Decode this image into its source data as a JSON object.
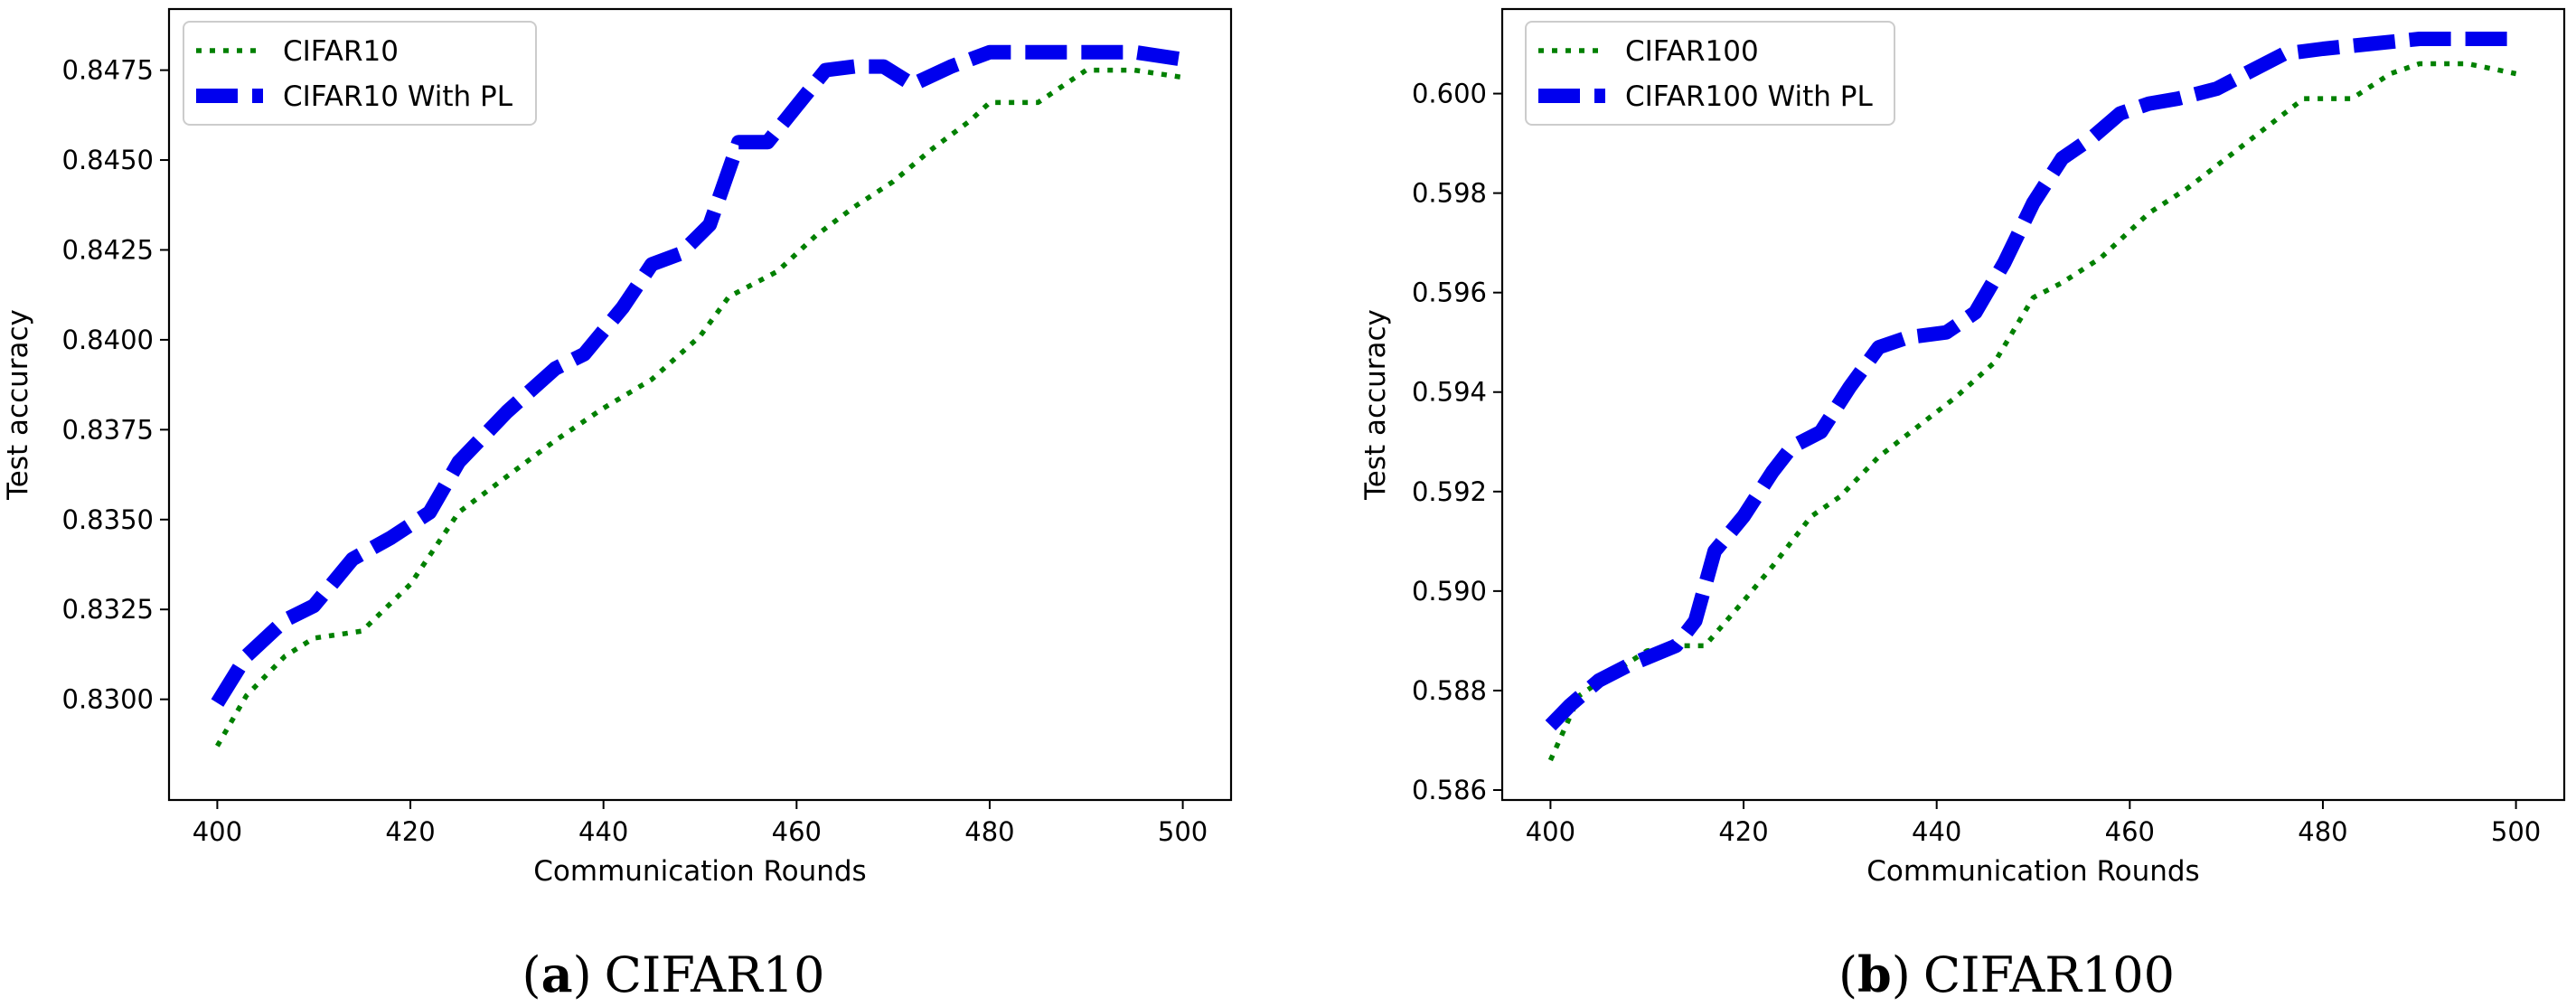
{
  "colors": {
    "baseline": "#008000",
    "with_pl": "#0000ee",
    "axis": "#000000"
  },
  "chart_data": [
    {
      "type": "line",
      "caption": {
        "letter": "a",
        "open": "(",
        "close": ")",
        "text": "CIFAR10"
      },
      "xlabel": "Communication Rounds",
      "ylabel": "Test accuracy",
      "xlim": [
        395,
        505
      ],
      "ylim": [
        0.8272,
        0.8492
      ],
      "xticks": [
        400,
        420,
        440,
        460,
        480,
        500
      ],
      "xtick_labels": [
        "400",
        "420",
        "440",
        "460",
        "480",
        "500"
      ],
      "yticks": [
        0.83,
        0.8325,
        0.835,
        0.8375,
        0.84,
        0.8425,
        0.845,
        0.8475
      ],
      "ytick_labels": [
        "0.8300",
        "0.8325",
        "0.8350",
        "0.8375",
        "0.8400",
        "0.8425",
        "0.8450",
        "0.8475"
      ],
      "legend": "top-left",
      "series": [
        {
          "name": "CIFAR10",
          "style": "dotted",
          "color": "#008000",
          "x": [
            400,
            403,
            407,
            410,
            415,
            420,
            425,
            430,
            435,
            440,
            445,
            450,
            453,
            458,
            462,
            466,
            470,
            474,
            478,
            480,
            485,
            490,
            495,
            500
          ],
          "y": [
            0.8287,
            0.8301,
            0.8312,
            0.8317,
            0.8319,
            0.8332,
            0.8352,
            0.8362,
            0.8372,
            0.8381,
            0.8389,
            0.8401,
            0.8412,
            0.8419,
            0.8429,
            0.8437,
            0.8444,
            0.8453,
            0.8461,
            0.8466,
            0.8466,
            0.8475,
            0.8475,
            0.8473
          ]
        },
        {
          "name": "CIFAR10 With PL",
          "style": "dashed",
          "color": "#0000ee",
          "x": [
            400,
            403,
            407,
            410,
            414,
            418,
            422,
            425,
            430,
            435,
            438,
            442,
            445,
            448,
            451,
            454,
            457,
            460,
            463,
            466,
            469,
            472,
            476,
            480,
            485,
            490,
            495,
            500
          ],
          "y": [
            0.8299,
            0.8312,
            0.8322,
            0.8326,
            0.8339,
            0.8345,
            0.8352,
            0.8366,
            0.838,
            0.8392,
            0.8396,
            0.8409,
            0.8421,
            0.8424,
            0.8432,
            0.8455,
            0.8455,
            0.8465,
            0.8475,
            0.8476,
            0.8476,
            0.8471,
            0.8476,
            0.848,
            0.848,
            0.848,
            0.848,
            0.8478
          ]
        }
      ]
    },
    {
      "type": "line",
      "caption": {
        "letter": "b",
        "open": "(",
        "close": ")",
        "text": "CIFAR100"
      },
      "xlabel": "Communication Rounds",
      "ylabel": "Test accuracy",
      "xlim": [
        395,
        505
      ],
      "ylim": [
        0.5858,
        0.6017
      ],
      "xticks": [
        400,
        420,
        440,
        460,
        480,
        500
      ],
      "xtick_labels": [
        "400",
        "420",
        "440",
        "460",
        "480",
        "500"
      ],
      "yticks": [
        0.586,
        0.588,
        0.59,
        0.592,
        0.594,
        0.596,
        0.598,
        0.6
      ],
      "ytick_labels": [
        "0.586",
        "0.588",
        "0.590",
        "0.592",
        "0.594",
        "0.596",
        "0.598",
        "0.600"
      ],
      "legend": "top-left",
      "series": [
        {
          "name": "CIFAR100",
          "style": "dotted",
          "color": "#008000",
          "x": [
            400,
            403,
            406,
            410,
            413,
            416,
            420,
            423,
            427,
            430,
            434,
            438,
            442,
            446,
            450,
            453,
            457,
            462,
            466,
            470,
            474,
            478,
            483,
            487,
            490,
            495,
            500
          ],
          "y": [
            0.5866,
            0.5879,
            0.5883,
            0.5888,
            0.5889,
            0.5889,
            0.5898,
            0.5905,
            0.5915,
            0.5919,
            0.5927,
            0.5933,
            0.5939,
            0.5946,
            0.5959,
            0.5962,
            0.5967,
            0.5976,
            0.5981,
            0.5987,
            0.5993,
            0.5999,
            0.5999,
            0.6004,
            0.6006,
            0.6006,
            0.6004
          ]
        },
        {
          "name": "CIFAR100 With PL",
          "style": "dashed",
          "color": "#0000ee",
          "x": [
            400,
            402,
            405,
            408,
            413,
            415,
            417,
            420,
            423,
            425,
            428,
            431,
            434,
            437,
            441,
            444,
            447,
            450,
            453,
            456,
            459,
            462,
            465,
            469,
            472,
            476,
            480,
            485,
            490,
            495,
            500
          ],
          "y": [
            0.5873,
            0.5877,
            0.5882,
            0.5885,
            0.5889,
            0.5894,
            0.5908,
            0.5915,
            0.5924,
            0.5929,
            0.5932,
            0.5941,
            0.5949,
            0.5951,
            0.5952,
            0.5956,
            0.5966,
            0.5978,
            0.5987,
            0.5991,
            0.5996,
            0.5998,
            0.5999,
            0.6001,
            0.6004,
            0.6008,
            0.6009,
            0.601,
            0.6011,
            0.6011,
            0.6011
          ]
        }
      ]
    }
  ]
}
